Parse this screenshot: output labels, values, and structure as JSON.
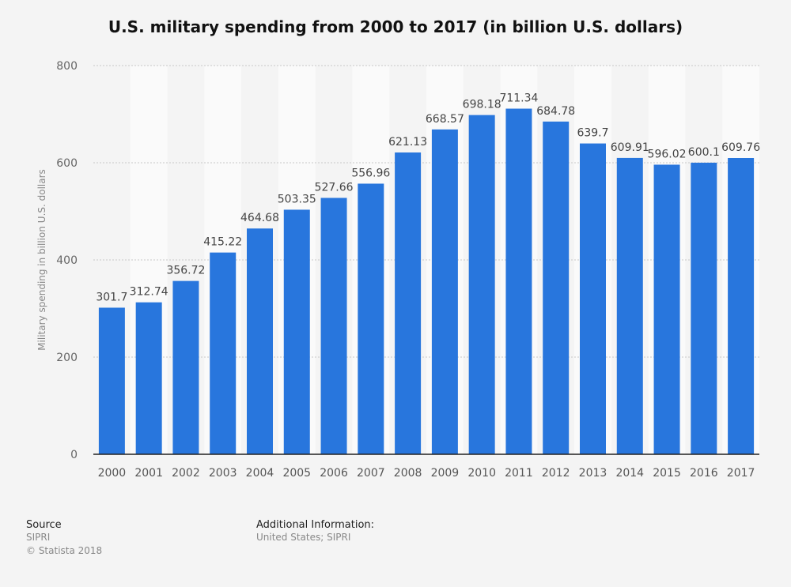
{
  "chart_data": {
    "type": "bar",
    "title": "U.S. military spending from 2000 to 2017 (in billion U.S. dollars)",
    "xlabel": "",
    "ylabel": "Military spending in billion U.S. dollars",
    "ylim": [
      0,
      800
    ],
    "yticks": [
      0,
      200,
      400,
      600,
      800
    ],
    "grid": true,
    "categories": [
      "2000",
      "2001",
      "2002",
      "2003",
      "2004",
      "2005",
      "2006",
      "2007",
      "2008",
      "2009",
      "2010",
      "2011",
      "2012",
      "2013",
      "2014",
      "2015",
      "2016",
      "2017"
    ],
    "values": [
      301.7,
      312.74,
      356.72,
      415.22,
      464.68,
      503.35,
      527.66,
      556.96,
      621.13,
      668.57,
      698.18,
      711.34,
      684.78,
      639.7,
      609.91,
      596.02,
      600.1,
      609.76
    ],
    "bar_color": "#2876dd"
  },
  "footer": {
    "source_heading": "Source",
    "source": "SIPRI",
    "copyright": "© Statista 2018",
    "additional_heading": "Additional Information:",
    "additional": "United States; SIPRI"
  }
}
